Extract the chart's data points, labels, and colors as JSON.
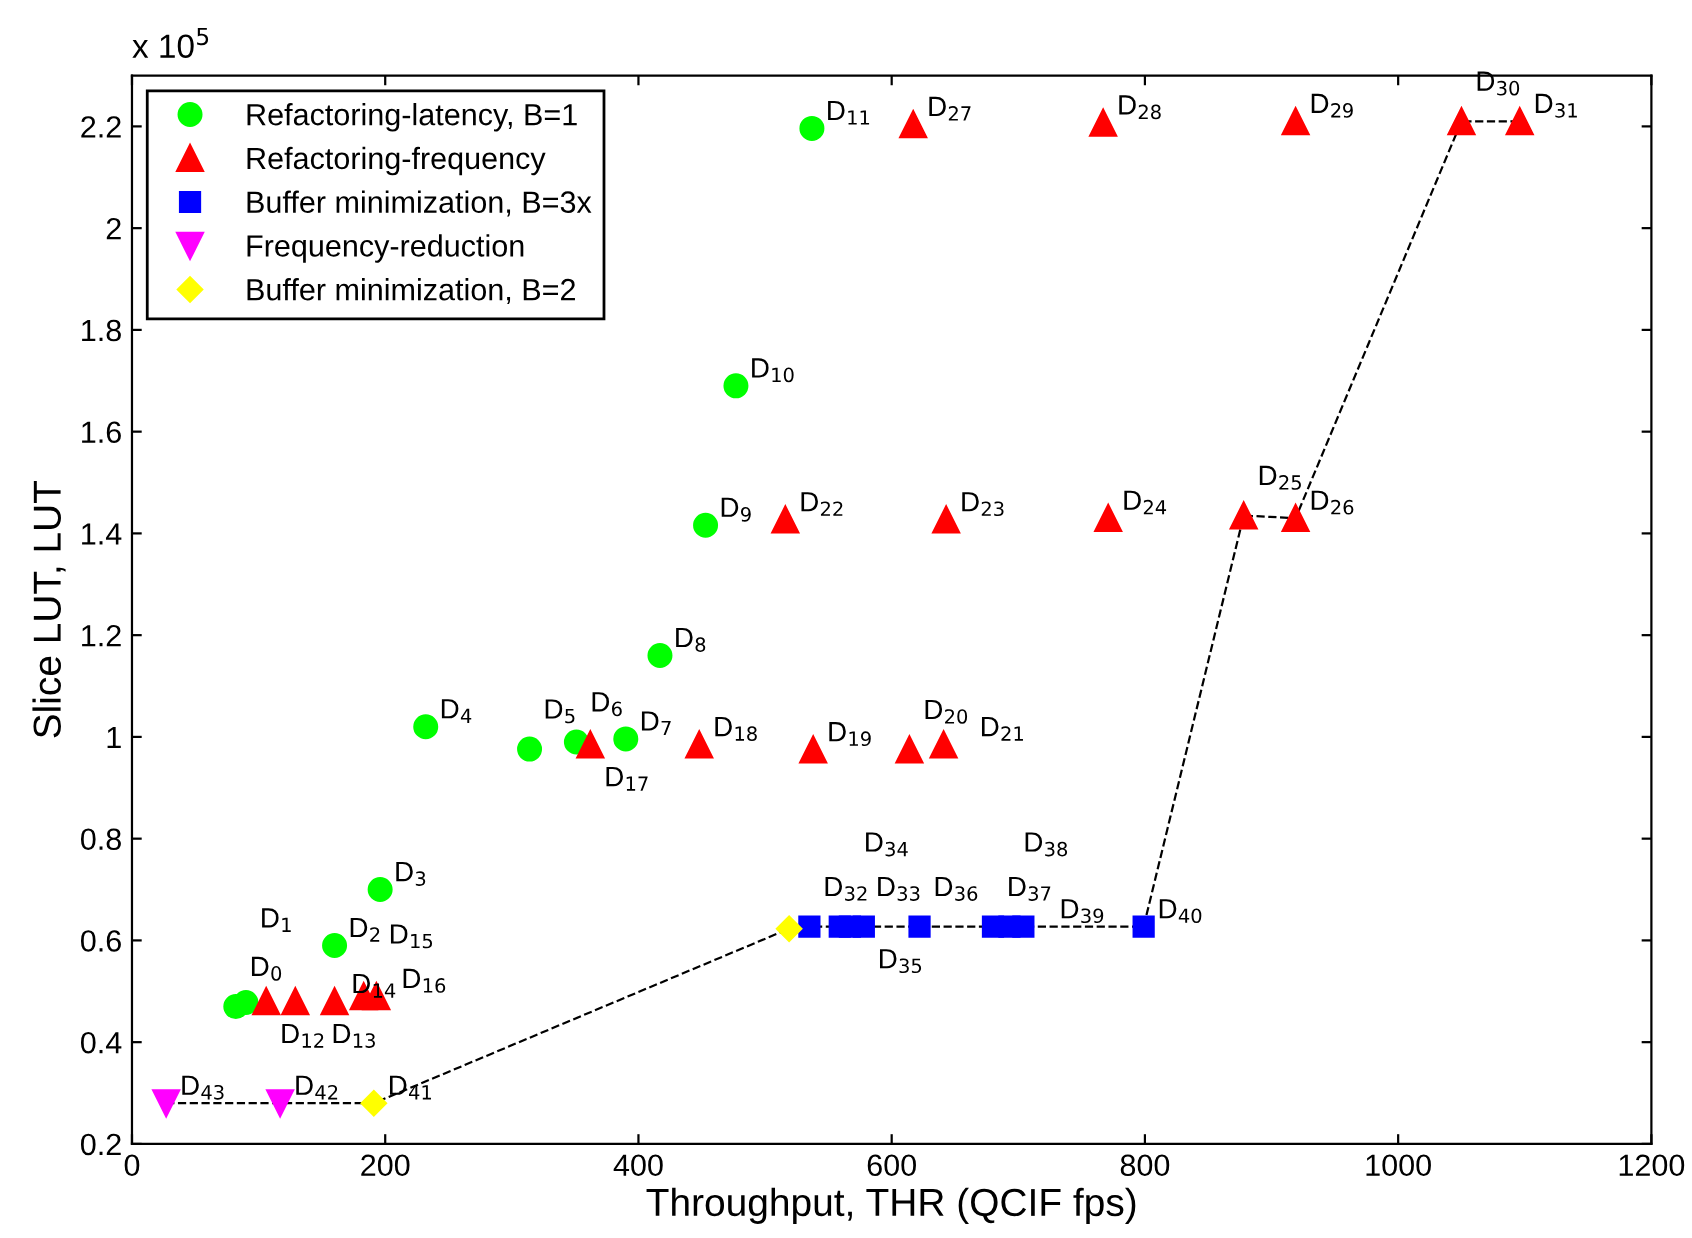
{
  "chart_data": {
    "type": "scatter",
    "xlabel": "Throughput, THR (QCIF fps)",
    "ylabel": "Slice LUT, LUT",
    "annotations": [
      "x 10$^{5}$",
      {
        "text": "D$_{0}$",
        "x": 82,
        "y": 0.47
      },
      {
        "text": "D$_{1}$",
        "x": 90,
        "y": 0.478
      },
      {
        "text": "D$_{2}$",
        "x": 160,
        "y": 0.59
      },
      {
        "text": "D$_{3}$",
        "x": 196,
        "y": 0.7
      },
      {
        "text": "D$_{4}$",
        "x": 232,
        "y": 1.02
      },
      {
        "text": "D$_{5}$",
        "x": 314,
        "y": 0.976
      },
      {
        "text": "D$_{6}$",
        "x": 351,
        "y": 0.99
      },
      {
        "text": "D$_{7}$",
        "x": 390,
        "y": 0.996
      },
      {
        "text": "D$_{8}$",
        "x": 417,
        "y": 1.16
      },
      {
        "text": "D$_{9}$",
        "x": 453,
        "y": 1.416
      },
      {
        "text": "D$_{10}$",
        "x": 477,
        "y": 1.69
      },
      {
        "text": "D$_{11}$",
        "x": 537,
        "y": 2.196
      },
      {
        "text": "D$_{12}$",
        "x": 106,
        "y": 0.48
      },
      {
        "text": "D$_{13}$",
        "x": 129,
        "y": 0.48
      },
      {
        "text": "D$_{14}$",
        "x": 160,
        "y": 0.48
      },
      {
        "text": "D$_{15}$",
        "x": 183,
        "y": 0.49
      },
      {
        "text": "D$_{16}$",
        "x": 193,
        "y": 0.49
      },
      {
        "text": "D$_{17}$",
        "x": 362,
        "y": 0.985
      },
      {
        "text": "D$_{18}$",
        "x": 448,
        "y": 0.985
      },
      {
        "text": "D$_{19}$",
        "x": 538,
        "y": 0.975
      },
      {
        "text": "D$_{20}$",
        "x": 614,
        "y": 0.975
      },
      {
        "text": "D$_{21}$",
        "x": 641,
        "y": 0.985
      },
      {
        "text": "D$_{22}$",
        "x": 516,
        "y": 1.427
      },
      {
        "text": "D$_{23}$",
        "x": 643,
        "y": 1.427
      },
      {
        "text": "D$_{24}$",
        "x": 771,
        "y": 1.43
      },
      {
        "text": "D$_{25}$",
        "x": 878,
        "y": 1.435
      },
      {
        "text": "D$_{26}$",
        "x": 919,
        "y": 1.43
      },
      {
        "text": "D$_{27}$",
        "x": 617,
        "y": 2.204
      },
      {
        "text": "D$_{28}$",
        "x": 767,
        "y": 2.207
      },
      {
        "text": "D$_{29}$",
        "x": 919,
        "y": 2.21
      },
      {
        "text": "D$_{30}$",
        "x": 1050,
        "y": 2.21
      },
      {
        "text": "D$_{31}$",
        "x": 1096,
        "y": 2.21
      },
      {
        "text": "D$_{32}$",
        "x": 535,
        "y": 0.627
      },
      {
        "text": "D$_{33}$",
        "x": 559,
        "y": 0.627
      },
      {
        "text": "D$_{34}$",
        "x": 567,
        "y": 0.627
      },
      {
        "text": "D$_{35}$",
        "x": 578,
        "y": 0.627
      },
      {
        "text": "D$_{36}$",
        "x": 622,
        "y": 0.627
      },
      {
        "text": "D$_{37}$",
        "x": 680,
        "y": 0.627
      },
      {
        "text": "D$_{38}$",
        "x": 693,
        "y": 0.627
      },
      {
        "text": "D$_{39}$",
        "x": 704,
        "y": 0.627
      },
      {
        "text": "D$_{40}$",
        "x": 799,
        "y": 0.627
      },
      {
        "text": "D$_{41}$",
        "x": 191,
        "y": 0.28
      },
      {
        "text": "D$_{42}$",
        "x": 117,
        "y": 0.28
      },
      {
        "text": "D$_{43}$",
        "x": 27,
        "y": 0.28
      }
    ],
    "xlim": [
      0,
      1200
    ],
    "xticks": [
      0,
      200,
      400,
      600,
      800,
      1000,
      1200
    ],
    "ylim": [
      0.2,
      2.3
    ],
    "yticks": [
      0.2,
      0.4,
      0.6,
      0.8,
      1,
      1.2,
      1.4,
      1.6,
      1.8,
      2,
      2.2
    ],
    "grid": false,
    "legend": "top left",
    "series": [
      {
        "type": "line",
        "color": "#000000",
        "line_style": "dashed",
        "marker": "none",
        "x": [
          27,
          117,
          191,
          519,
          535,
          559,
          567,
          578,
          622,
          680,
          693,
          704,
          799,
          878,
          919,
          1050,
          1096
        ],
        "values": [
          0.28,
          0.28,
          0.28,
          0.623,
          0.627,
          0.627,
          0.627,
          0.627,
          0.627,
          0.627,
          0.627,
          0.627,
          0.627,
          1.435,
          1.43,
          2.21,
          2.21
        ]
      },
      {
        "name": "Refactoring-latency, B=1",
        "color": "#00ff00",
        "marker": "circle",
        "x": [
          82,
          90,
          160,
          196,
          232,
          314,
          351,
          390,
          417,
          453,
          477,
          537
        ],
        "values": [
          0.47,
          0.478,
          0.59,
          0.7,
          1.02,
          0.976,
          0.99,
          0.996,
          1.16,
          1.416,
          1.69,
          2.196
        ]
      },
      {
        "name": "Refactoring-frequency",
        "color": "#ff0000",
        "marker": "triangle",
        "x": [
          106,
          129,
          160,
          183,
          193,
          362,
          448,
          538,
          614,
          641,
          516,
          643,
          771,
          878,
          919,
          617,
          767,
          919,
          1050,
          1096
        ],
        "values": [
          0.48,
          0.48,
          0.48,
          0.49,
          0.49,
          0.985,
          0.985,
          0.975,
          0.975,
          0.985,
          1.427,
          1.427,
          1.43,
          1.435,
          1.43,
          2.204,
          2.207,
          2.21,
          2.21,
          2.21
        ]
      },
      {
        "name": "Buffer minimization, B=3x",
        "color": "#0000ff",
        "marker": "square",
        "x": [
          535,
          559,
          567,
          578,
          622,
          680,
          693,
          704,
          799
        ],
        "values": [
          0.627,
          0.627,
          0.627,
          0.627,
          0.627,
          0.627,
          0.627,
          0.627,
          0.627
        ]
      },
      {
        "name": "Frequency-reduction",
        "color": "#ff00ff",
        "marker": "triangle_down",
        "x": [
          27,
          117
        ],
        "values": [
          0.28,
          0.28
        ]
      },
      {
        "name": "Buffer minimization, B=2",
        "color": "#ffff00",
        "marker": "diamond",
        "x": [
          191,
          519
        ],
        "values": [
          0.28,
          0.623
        ]
      }
    ]
  }
}
